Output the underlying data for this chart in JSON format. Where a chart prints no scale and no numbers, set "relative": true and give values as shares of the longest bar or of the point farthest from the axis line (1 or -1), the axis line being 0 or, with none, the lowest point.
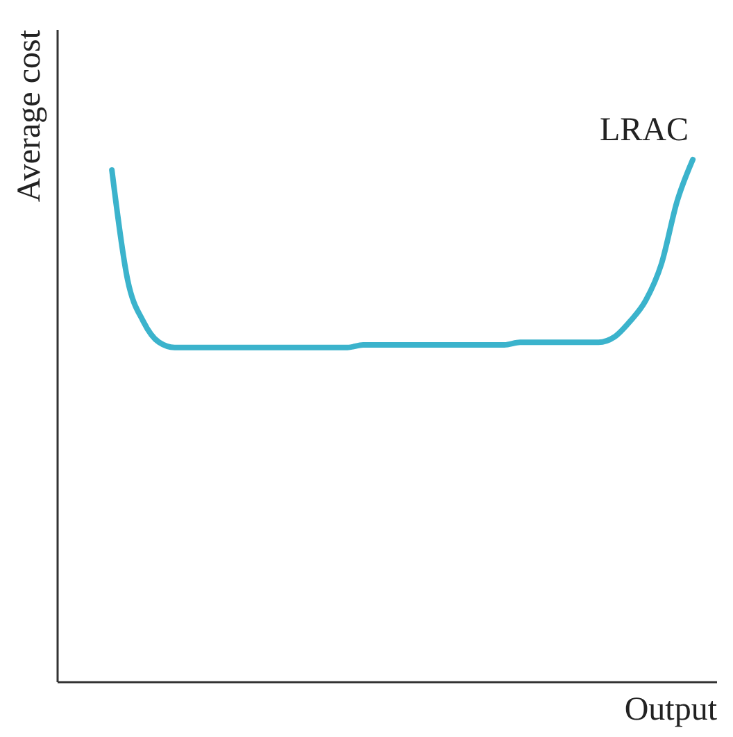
{
  "chart_data": {
    "type": "line",
    "relative": true,
    "ylabel": "Average cost",
    "xlabel": "Output",
    "annotations": [
      "LRAC"
    ],
    "grid": false,
    "tick_labels": false,
    "color": "#3bb3cc",
    "categories": [
      null,
      null,
      null,
      null,
      null,
      null,
      null,
      null,
      null,
      null,
      null,
      null,
      null,
      null,
      null,
      null,
      null,
      null,
      null,
      null,
      null,
      null,
      null,
      null,
      null,
      null,
      null,
      null,
      null,
      null,
      null,
      null,
      null,
      null,
      null,
      null,
      null,
      null,
      null,
      null,
      null
    ],
    "values": [
      null,
      null,
      0.98,
      0.77,
      0.69,
      0.65,
      0.64,
      0.64,
      0.64,
      0.64,
      0.64,
      0.64,
      0.64,
      0.64,
      0.64,
      0.64,
      0.64,
      0.64,
      0.645,
      0.645,
      0.645,
      0.645,
      0.645,
      0.645,
      0.645,
      0.645,
      0.645,
      0.645,
      0.65,
      0.65,
      0.65,
      0.65,
      0.65,
      0.65,
      0.66,
      0.69,
      0.73,
      0.8,
      0.92,
      1.0,
      null
    ]
  }
}
